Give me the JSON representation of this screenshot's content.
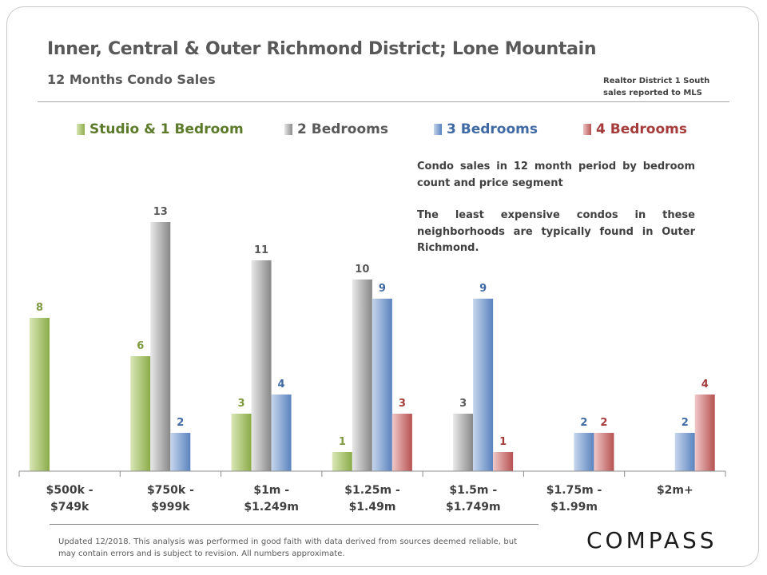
{
  "title": "Inner, Central & Outer Richmond District; Lone Mountain",
  "subtitle": "12 Months  Condo Sales",
  "source_line1": "Realtor District 1 South",
  "source_line2": "sales reported to MLS",
  "annotation": {
    "p1": "Condo sales in 12 month period by bedroom count and price segment",
    "p2": "The least expensive condos in these neighborhoods are typically found in Outer Richmond."
  },
  "footer": "Updated 12/2018. This analysis was performed in good faith with data derived from sources deemed reliable, but may contain errors and is subject to revision. All numbers approximate.",
  "logo": "COMPASS",
  "colors": {
    "studio": "#7e9a3f",
    "two": "#595959",
    "three": "#3f69a3",
    "four": "#a63b3b"
  },
  "chart_data": {
    "type": "bar",
    "title": "Inner, Central & Outer Richmond District; Lone Mountain",
    "xlabel": "",
    "ylabel": "",
    "ylim": [
      0,
      16
    ],
    "legend_position": "top",
    "categories": [
      [
        "$500k -",
        "$749k"
      ],
      [
        "$750k -",
        "$999k"
      ],
      [
        "$1m -",
        "$1.249m"
      ],
      [
        "$1.25m -",
        "$1.49m"
      ],
      [
        "$1.5m -",
        "$1.749m"
      ],
      [
        "$1.75m -",
        "$1.99m"
      ],
      [
        "$2m+"
      ]
    ],
    "series": [
      {
        "name": "Studio & 1 Bedroom",
        "key": "studio",
        "values": [
          8,
          6,
          3,
          1,
          null,
          null,
          null
        ]
      },
      {
        "name": "2 Bedrooms",
        "key": "two",
        "values": [
          null,
          13,
          11,
          10,
          3,
          null,
          null
        ]
      },
      {
        "name": "3 Bedrooms",
        "key": "three",
        "values": [
          null,
          2,
          4,
          9,
          9,
          2,
          2
        ]
      },
      {
        "name": "4 Bedrooms",
        "key": "four",
        "values": [
          null,
          null,
          null,
          3,
          1,
          2,
          4
        ]
      }
    ]
  }
}
